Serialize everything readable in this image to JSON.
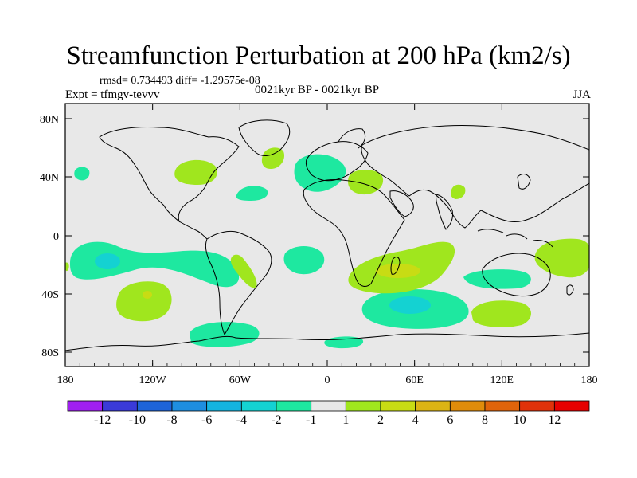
{
  "title": "Streamfunction Perturbation at 200 hPa (km2/s)",
  "stats_text": "rmsd= 0.734493 diff= -1.29575e-08",
  "experiment_text": "Expt = tfmgv-tevvv",
  "period_text": "0021kyr BP - 0021kyr BP",
  "season": "JJA",
  "lat_ticks": [
    "80N",
    "40N",
    "0",
    "40S",
    "80S"
  ],
  "lon_ticks": [
    "180",
    "120W",
    "60W",
    "0",
    "60E",
    "120E",
    "180"
  ],
  "colorbar_labels": [
    "-12",
    "-10",
    "-8",
    "-6",
    "-4",
    "-2",
    "-1",
    "1",
    "2",
    "4",
    "6",
    "8",
    "10",
    "12"
  ],
  "colorbar_colors": [
    "#a020f0",
    "#3a3ad8",
    "#1e64d8",
    "#1e8ee0",
    "#14b4e0",
    "#14d2d2",
    "#1ee8a0",
    "#e8e8e8",
    "#a0e61e",
    "#c8dc14",
    "#dcb414",
    "#e08c0a",
    "#e0640a",
    "#e0320a",
    "#e60000"
  ],
  "colors": {
    "background_field": "#e8e8e8",
    "neg_1_2": "#1ee8a0",
    "neg_2_4": "#14d2d2",
    "pos_1_2": "#a0e61e",
    "pos_2_4": "#c8dc14"
  }
}
